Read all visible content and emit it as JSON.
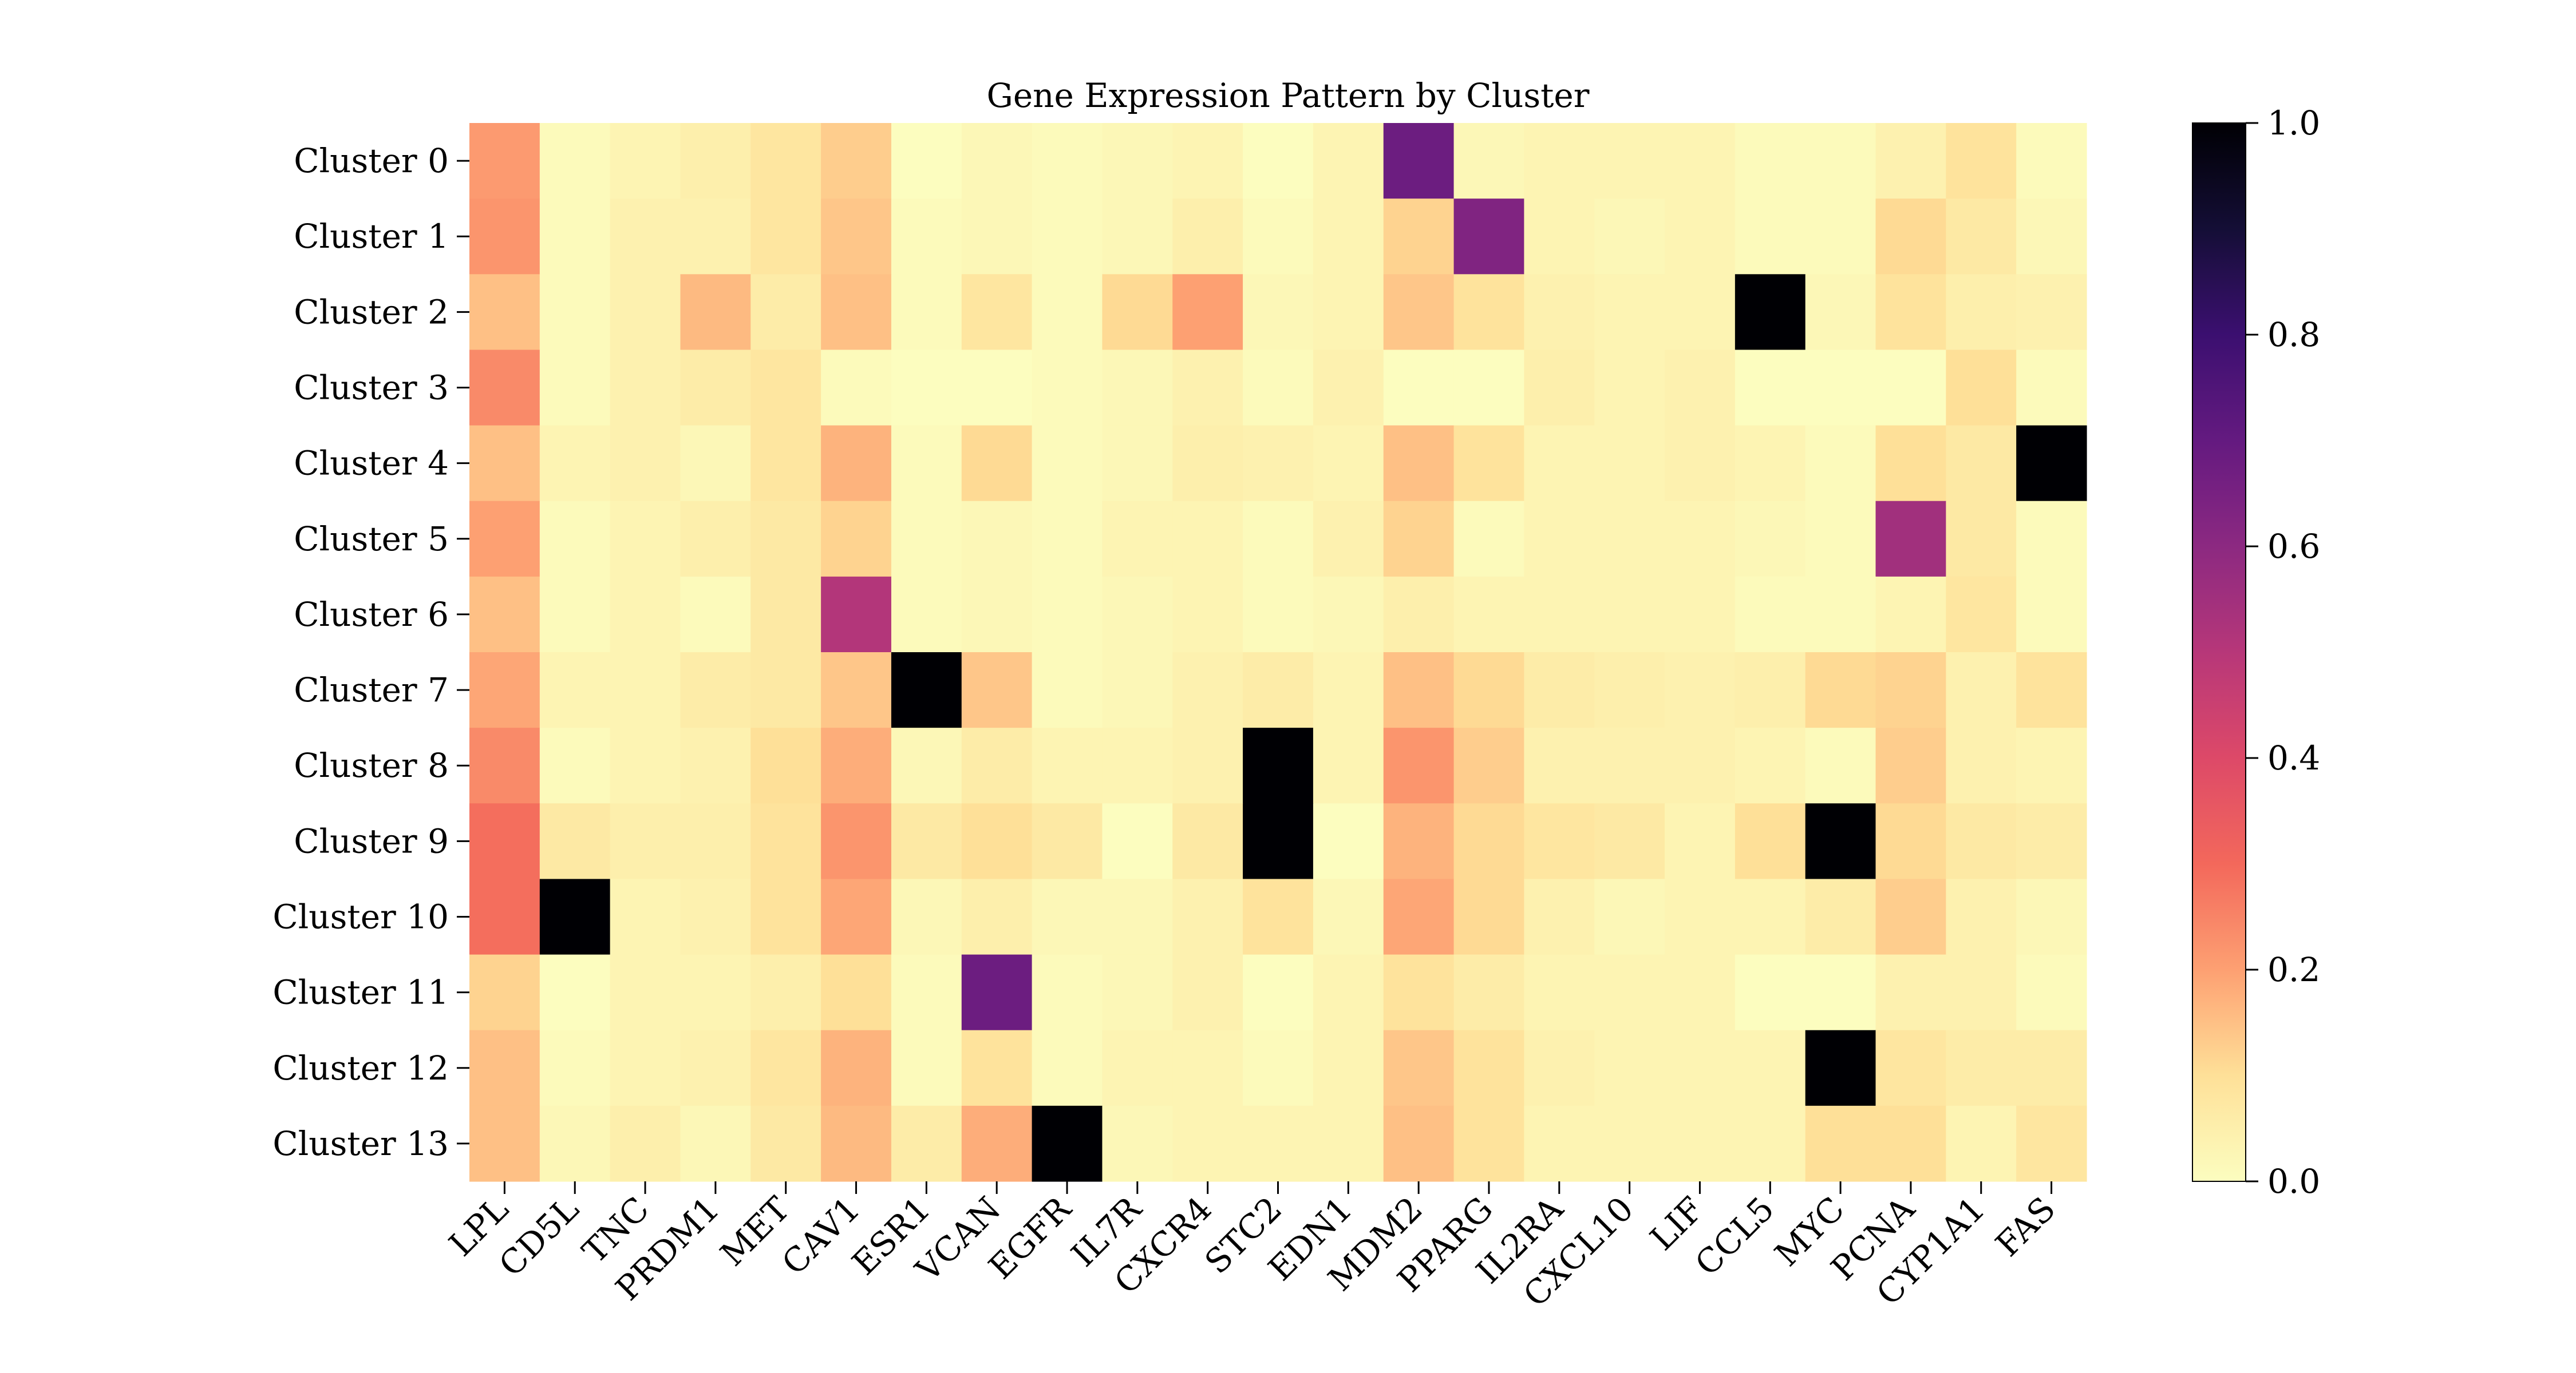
{
  "chart_data": {
    "type": "heatmap",
    "title": "Gene Expression Pattern by Cluster",
    "xlabel": "",
    "ylabel": "",
    "colormap": "magma_r",
    "color_range": [
      0.0,
      1.0
    ],
    "colorbar_ticks": [
      "0.0",
      "0.2",
      "0.4",
      "0.6",
      "0.8",
      "1.0"
    ],
    "colorbar_values": [
      0.0,
      0.2,
      0.4,
      0.6,
      0.8,
      1.0
    ],
    "grid": false,
    "legend_position": "right (colorbar)",
    "columns": [
      "LPL",
      "CD5L",
      "TNC",
      "PRDM1",
      "MET",
      "CAV1",
      "ESR1",
      "VCAN",
      "EGFR",
      "IL7R",
      "CXCR4",
      "STC2",
      "EDN1",
      "MDM2",
      "PPARG",
      "IL2RA",
      "CXCL10",
      "LIF",
      "CCL5",
      "MYC",
      "PCNA",
      "CYP1A1",
      "FAS"
    ],
    "rows": [
      "Cluster 0",
      "Cluster 1",
      "Cluster 2",
      "Cluster 3",
      "Cluster 4",
      "Cluster 5",
      "Cluster 6",
      "Cluster 7",
      "Cluster 8",
      "Cluster 9",
      "Cluster 10",
      "Cluster 11",
      "Cluster 12",
      "Cluster 13"
    ],
    "values": [
      [
        0.21,
        0.01,
        0.03,
        0.05,
        0.08,
        0.13,
        0.0,
        0.02,
        0.01,
        0.02,
        0.03,
        0.0,
        0.03,
        0.68,
        0.02,
        0.03,
        0.03,
        0.03,
        0.01,
        0.01,
        0.04,
        0.09,
        0.01
      ],
      [
        0.22,
        0.01,
        0.04,
        0.04,
        0.08,
        0.14,
        0.01,
        0.02,
        0.01,
        0.02,
        0.05,
        0.01,
        0.03,
        0.12,
        0.63,
        0.03,
        0.02,
        0.03,
        0.01,
        0.01,
        0.11,
        0.07,
        0.02
      ],
      [
        0.15,
        0.01,
        0.04,
        0.16,
        0.06,
        0.15,
        0.01,
        0.08,
        0.01,
        0.11,
        0.2,
        0.02,
        0.03,
        0.14,
        0.09,
        0.04,
        0.03,
        0.03,
        1.0,
        0.02,
        0.09,
        0.05,
        0.04
      ],
      [
        0.24,
        0.01,
        0.04,
        0.06,
        0.08,
        0.01,
        0.0,
        0.0,
        0.01,
        0.02,
        0.04,
        0.01,
        0.04,
        0.0,
        0.0,
        0.05,
        0.03,
        0.04,
        0.0,
        0.0,
        0.0,
        0.1,
        0.01
      ],
      [
        0.15,
        0.03,
        0.04,
        0.02,
        0.08,
        0.17,
        0.01,
        0.11,
        0.01,
        0.02,
        0.05,
        0.04,
        0.03,
        0.15,
        0.09,
        0.03,
        0.03,
        0.04,
        0.03,
        0.01,
        0.1,
        0.07,
        1.0
      ],
      [
        0.2,
        0.01,
        0.03,
        0.05,
        0.07,
        0.12,
        0.01,
        0.02,
        0.01,
        0.03,
        0.03,
        0.01,
        0.04,
        0.12,
        0.01,
        0.03,
        0.03,
        0.03,
        0.02,
        0.01,
        0.55,
        0.07,
        0.01
      ],
      [
        0.15,
        0.01,
        0.03,
        0.01,
        0.07,
        0.51,
        0.01,
        0.02,
        0.01,
        0.02,
        0.03,
        0.01,
        0.02,
        0.05,
        0.03,
        0.03,
        0.03,
        0.03,
        0.01,
        0.01,
        0.03,
        0.08,
        0.01
      ],
      [
        0.19,
        0.03,
        0.03,
        0.06,
        0.07,
        0.14,
        1.0,
        0.14,
        0.01,
        0.02,
        0.04,
        0.06,
        0.03,
        0.15,
        0.11,
        0.06,
        0.05,
        0.04,
        0.05,
        0.11,
        0.12,
        0.04,
        0.09
      ],
      [
        0.24,
        0.01,
        0.03,
        0.04,
        0.1,
        0.18,
        0.02,
        0.06,
        0.03,
        0.03,
        0.04,
        1.0,
        0.03,
        0.22,
        0.13,
        0.04,
        0.04,
        0.04,
        0.03,
        0.01,
        0.13,
        0.04,
        0.03
      ],
      [
        0.29,
        0.07,
        0.05,
        0.05,
        0.09,
        0.22,
        0.07,
        0.1,
        0.07,
        0.0,
        0.07,
        1.0,
        0.0,
        0.17,
        0.11,
        0.08,
        0.07,
        0.03,
        0.1,
        1.0,
        0.11,
        0.07,
        0.06
      ],
      [
        0.29,
        1.0,
        0.03,
        0.04,
        0.09,
        0.19,
        0.02,
        0.05,
        0.02,
        0.02,
        0.04,
        0.09,
        0.02,
        0.19,
        0.11,
        0.04,
        0.02,
        0.03,
        0.03,
        0.06,
        0.13,
        0.04,
        0.02
      ],
      [
        0.12,
        0.0,
        0.03,
        0.03,
        0.05,
        0.1,
        0.01,
        0.68,
        0.01,
        0.02,
        0.04,
        0.0,
        0.03,
        0.09,
        0.06,
        0.03,
        0.03,
        0.03,
        0.0,
        0.0,
        0.04,
        0.04,
        0.01
      ],
      [
        0.15,
        0.01,
        0.03,
        0.04,
        0.08,
        0.17,
        0.01,
        0.09,
        0.01,
        0.03,
        0.03,
        0.01,
        0.03,
        0.14,
        0.09,
        0.04,
        0.03,
        0.03,
        0.03,
        1.0,
        0.08,
        0.06,
        0.06
      ],
      [
        0.15,
        0.02,
        0.05,
        0.02,
        0.07,
        0.16,
        0.06,
        0.18,
        1.0,
        0.02,
        0.03,
        0.03,
        0.03,
        0.15,
        0.09,
        0.03,
        0.03,
        0.03,
        0.03,
        0.1,
        0.1,
        0.03,
        0.08
      ]
    ]
  }
}
